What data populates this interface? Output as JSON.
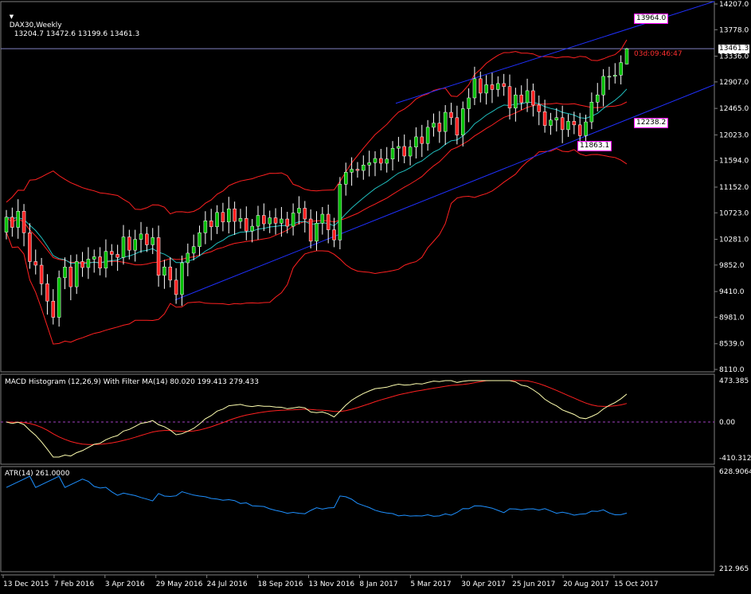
{
  "symbol_header": {
    "symbol": "DAX30,Weekly",
    "ohlc": "13204.7 13472.6 13199.6 13461.3"
  },
  "price_axis": {
    "ticks": [
      "14207.0",
      "13778.0",
      "13336.0",
      "12907.0",
      "12465.0",
      "12023.0",
      "11594.0",
      "11152.0",
      "10723.0",
      "10281.0",
      "9852.0",
      "9410.0",
      "8981.0",
      "8539.0",
      "8110.0"
    ],
    "current_price": "13461.3",
    "range": [
      8110.0,
      14207.0
    ]
  },
  "annotations": {
    "countdown": "03d:09:46:47",
    "level_upper": "13964.0",
    "level_mid": "12238.2",
    "level_low": "11863.1"
  },
  "macd": {
    "label": "MACD Histogram (12,26,9) With Filter MA(14) 80.020 199.413 279.433",
    "ticks": [
      "473.385",
      "0.00",
      "-410.312"
    ]
  },
  "atr": {
    "label": "ATR(14) 261.0000",
    "ticks": [
      "628.9064",
      "212.965"
    ]
  },
  "time_axis": {
    "labels": [
      "13 Dec 2015",
      "7 Feb 2016",
      "3 Apr 2016",
      "29 May 2016",
      "24 Jul 2016",
      "18 Sep 2016",
      "13 Nov 2016",
      "8 Jan 2017",
      "5 Mar 2017",
      "30 Apr 2017",
      "25 Jun 2017",
      "20 Aug 2017",
      "15 Oct 2017"
    ]
  },
  "colors": {
    "background": "#000000",
    "bull_candle": "#00c000",
    "bear_candle": "#ff2020",
    "wick": "#ffffff",
    "bollinger": "#ff2020",
    "ema": "#20c0c0",
    "channel": "#2030ff",
    "macd_main": "#ffffb0",
    "macd_signal": "#ff2020",
    "atr_line": "#1e90ff",
    "label_border": "#ff00ff",
    "grid_frame": "#808080"
  },
  "chart_data": {
    "type": "candlestick",
    "timeframe": "weekly",
    "last_bar": {
      "open": 13204.7,
      "high": 13472.6,
      "low": 13199.6,
      "close": 13461.3
    },
    "closes_approx": [
      10650,
      10480,
      10750,
      10390,
      9910,
      9850,
      9540,
      9250,
      8980,
      9640,
      9820,
      9490,
      9910,
      9810,
      9950,
      9990,
      9800,
      10080,
      10030,
      9980,
      10320,
      10100,
      10280,
      10370,
      10190,
      10310,
      9680,
      9820,
      9600,
      9360,
      9890,
      10050,
      10160,
      10390,
      10590,
      10490,
      10730,
      10570,
      10790,
      10580,
      10630,
      10420,
      10500,
      10680,
      10540,
      10640,
      10550,
      10620,
      10500,
      10720,
      10800,
      10620,
      10250,
      10550,
      10700,
      10440,
      10270,
      11200,
      11400,
      11450,
      11430,
      11520,
      11560,
      11630,
      11550,
      11620,
      11800,
      11830,
      11670,
      11820,
      11990,
      11880,
      12150,
      12220,
      12080,
      12400,
      12310,
      12020,
      12460,
      12640,
      12960,
      12720,
      12860,
      12780,
      12880,
      12830,
      12470,
      12690,
      12560,
      12760,
      12520,
      12410,
      12180,
      12270,
      12310,
      12110,
      12250,
      12190,
      12010,
      12240,
      12570,
      12690,
      13000,
      13000,
      13020,
      13230,
      13460
    ]
  }
}
